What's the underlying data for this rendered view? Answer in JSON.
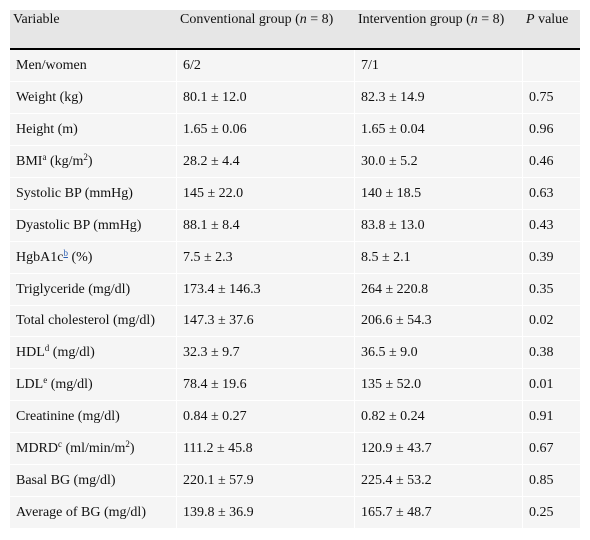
{
  "table": {
    "headers": {
      "variable": "Variable",
      "conventional": {
        "pre": "Conventional group (",
        "n": "n",
        "post": " = 8)"
      },
      "intervention": {
        "pre": "Intervention group (",
        "n": "n",
        "post": " = 8)"
      },
      "p_value": {
        "p": "P",
        "rest": " value"
      }
    },
    "rows": [
      {
        "label": "Men/women",
        "conv": "6/2",
        "int": "7/1",
        "p": ""
      },
      {
        "label": "Weight (kg)",
        "conv": "80.1 ± 12.0",
        "int": "82.3 ± 14.9",
        "p": "0.75"
      },
      {
        "label": "Height (m)",
        "conv": "1.65 ± 0.06",
        "int": "1.65 ± 0.04",
        "p": "0.96"
      },
      {
        "label_pre": "BMI",
        "sup": "a",
        "label_mid": " (kg/m",
        "sup2": "2",
        "label_post": ")",
        "conv": "28.2 ± 4.4",
        "int": "30.0 ± 5.2",
        "p": "0.46"
      },
      {
        "label": "Systolic BP (mmHg)",
        "conv": "145 ± 22.0",
        "int": "140 ± 18.5",
        "p": "0.63"
      },
      {
        "label": "Dyastolic BP (mmHg)",
        "conv": "88.1 ± 8.4",
        "int": "83.8 ± 13.0",
        "p": "0.43"
      },
      {
        "label_pre": "HgbA1c",
        "sup": "b",
        "label_post": " (%)",
        "conv": "7.5 ± 2.3",
        "int": "8.5 ± 2.1",
        "p": "0.39"
      },
      {
        "label": "Triglyceride (mg/dl)",
        "conv": "173.4 ± 146.3",
        "int": "264 ± 220.8",
        "p": "0.35"
      },
      {
        "label": "Total cholesterol (mg/dl)",
        "conv": "147.3 ± 37.6",
        "int": "206.6 ± 54.3",
        "p": "0.02"
      },
      {
        "label_pre": "HDL",
        "sup": "d",
        "label_post": " (mg/dl)",
        "conv": "32.3 ± 9.7",
        "int": "36.5 ± 9.0",
        "p": "0.38"
      },
      {
        "label_pre": "LDL",
        "sup": "e",
        "label_post": " (mg/dl)",
        "conv": "78.4 ± 19.6",
        "int": "135 ± 52.0",
        "p": "0.01"
      },
      {
        "label": "Creatinine (mg/dl)",
        "conv": "0.84 ± 0.27",
        "int": "0.82 ± 0.24",
        "p": "0.91"
      },
      {
        "label_pre": "MDRD",
        "sup": "c",
        "label_mid": " (ml/min/m",
        "sup2": "2",
        "label_post": ")",
        "conv": "111.2 ± 45.8",
        "int": "120.9 ± 43.7",
        "p": "0.67"
      },
      {
        "label": "Basal BG (mg/dl)",
        "conv": "220.1 ± 57.9",
        "int": "225.4 ± 53.2",
        "p": "0.85"
      },
      {
        "label": "Average of BG (mg/dl)",
        "conv": "139.8 ± 36.9",
        "int": "165.7 ± 48.7",
        "p": "0.25"
      }
    ]
  },
  "colors": {
    "header_bg": "#e6e6e6",
    "cell_bg": "#f5f5f5",
    "link": "#2a5db0"
  }
}
